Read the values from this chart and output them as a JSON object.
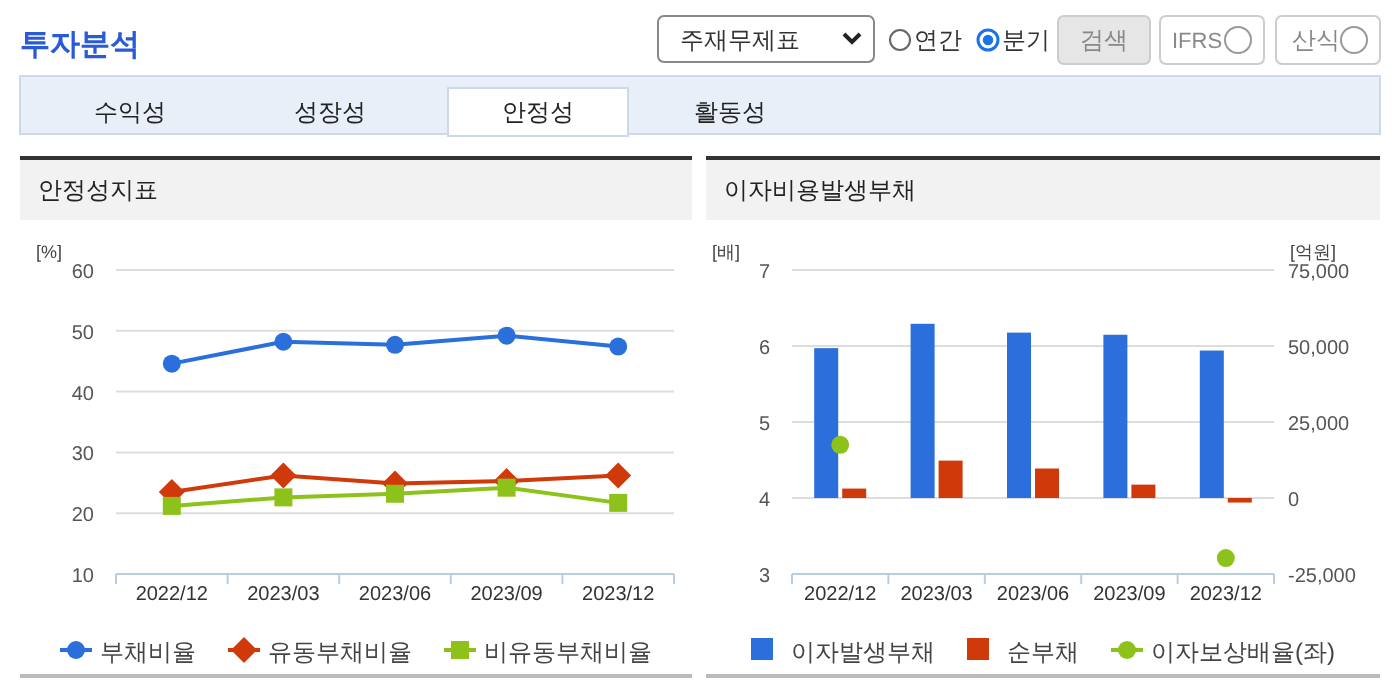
{
  "chart_data": [
    {
      "type": "other",
      "title": "투자분석",
      "annotations": [
        "주재무제표",
        "연간",
        "분기",
        "검색",
        "IFRS",
        "산식",
        "수익성",
        "성장성",
        "안정성",
        "활동성"
      ]
    },
    {
      "type": "line",
      "title": "안정성지표",
      "ylabel": "[%]",
      "categories": [
        "2022/12",
        "2023/03",
        "2023/06",
        "2023/09",
        "2023/12"
      ],
      "ylim": [
        10,
        60
      ],
      "yticks": [
        10,
        20,
        30,
        40,
        50,
        60
      ],
      "grid": "y",
      "legend": "bottom",
      "series": [
        {
          "name": "부채비율",
          "color": "#2a6fdb",
          "marker": "circle",
          "values": [
            44.6,
            48.2,
            47.7,
            49.2,
            47.4
          ]
        },
        {
          "name": "유동부채비율",
          "color": "#d03a0a",
          "marker": "diamond",
          "values": [
            23.5,
            26.2,
            24.9,
            25.3,
            26.2
          ]
        },
        {
          "name": "비유동부채비율",
          "color": "#8cc21a",
          "marker": "square",
          "values": [
            21.2,
            22.6,
            23.2,
            24.2,
            21.7
          ]
        }
      ]
    },
    {
      "type": "bar",
      "title": "이자비용발생부채",
      "ylabel": "[배]",
      "y2label": "[억원]",
      "categories": [
        "2022/12",
        "2023/03",
        "2023/06",
        "2023/09",
        "2023/12"
      ],
      "ylim": [
        3,
        7
      ],
      "yticks": [
        3,
        4,
        5,
        6,
        7
      ],
      "y2lim": [
        -25000,
        75000
      ],
      "y2ticks": [
        {
          "value": -25000,
          "label": "-25,000"
        },
        0,
        {
          "value": 25000,
          "label": "25,000"
        },
        {
          "value": 50000,
          "label": "50,000"
        },
        {
          "value": 75000,
          "label": "75,000"
        }
      ],
      "grid": "y",
      "legend": "bottom",
      "series": [
        {
          "name": "이자발생부채",
          "color": "#2a6fdb",
          "axis": "y2",
          "values": [
            49300,
            57300,
            54400,
            53700,
            48500
          ]
        },
        {
          "name": "순부채",
          "color": "#d03a0a",
          "axis": "y2",
          "values": [
            3100,
            12300,
            9700,
            4400,
            -1500
          ]
        },
        {
          "name": "이자보상배율(좌)",
          "type": "scatter",
          "color": "#8cc21a",
          "values": [
            4.7,
            null,
            null,
            null,
            3.21
          ]
        }
      ]
    }
  ]
}
